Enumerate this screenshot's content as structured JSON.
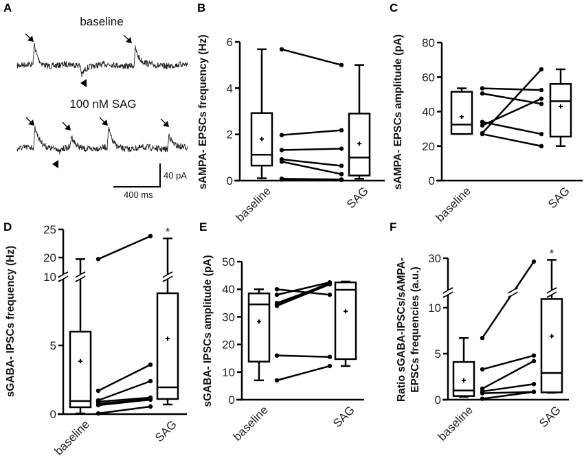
{
  "panel_a": {
    "letter": "A",
    "baseline_title": "baseline",
    "sag_title": "100 nM SAG",
    "scale_y": "40 pA",
    "scale_x": "400 ms"
  },
  "chart_data": [
    {
      "id": "B",
      "letter": "B",
      "type": "box-paired",
      "ylabel": "sAMPA- EPSCs frequency (Hz)",
      "categories": [
        "baseline",
        "SAG"
      ],
      "yticks": [
        0,
        2,
        4,
        6
      ],
      "ytick_labels": [
        "0",
        "2",
        "4",
        "6"
      ],
      "ylim": [
        0,
        6
      ],
      "boxes": [
        {
          "min": 0.1,
          "q1": 0.65,
          "median": 1.12,
          "q3": 2.92,
          "max": 5.68,
          "mean": 1.8
        },
        {
          "min": 0.08,
          "q1": 0.22,
          "median": 1.0,
          "q3": 2.9,
          "max": 5.0,
          "mean": 1.6
        }
      ],
      "pairs": [
        [
          5.68,
          5.0
        ],
        [
          1.97,
          2.18
        ],
        [
          1.32,
          1.38
        ],
        [
          0.92,
          0.64
        ],
        [
          0.82,
          0.28
        ],
        [
          0.08,
          0.05
        ],
        [
          0.05,
          0.03
        ]
      ],
      "significance": [
        "",
        ""
      ]
    },
    {
      "id": "C",
      "letter": "C",
      "type": "box-paired",
      "ylabel": "sAMPA- EPSCs amplitude (pA)",
      "categories": [
        "baseline",
        "SAG"
      ],
      "yticks": [
        0,
        20,
        40,
        60,
        80
      ],
      "ytick_labels": [
        "0",
        "20",
        "40",
        "60",
        "80"
      ],
      "ylim": [
        0,
        80
      ],
      "boxes": [
        {
          "min": 27,
          "q1": 27,
          "median": 32.5,
          "q3": 51.5,
          "max": 53.5,
          "mean": 37
        },
        {
          "min": 20,
          "q1": 25.5,
          "median": 46,
          "q3": 56,
          "max": 64.5,
          "mean": 43
        }
      ],
      "pairs": [
        [
          53.5,
          52.5
        ],
        [
          50.5,
          44.5
        ],
        [
          34,
          27
        ],
        [
          32,
          47.5
        ],
        [
          27.5,
          64.5
        ],
        [
          27,
          20
        ]
      ],
      "significance": [
        "",
        ""
      ]
    },
    {
      "id": "D",
      "letter": "D",
      "type": "box-paired",
      "ylabel": "sGABA- IPSCs frequency (Hz)",
      "categories": [
        "baseline",
        "SAG"
      ],
      "yticks": [
        0,
        5,
        10,
        20,
        25
      ],
      "ytick_labels": [
        "0",
        "5",
        "10",
        "20",
        "25"
      ],
      "ylim": [
        0,
        25
      ],
      "axis_break": [
        10,
        12
      ],
      "boxes": [
        {
          "min": 0.05,
          "q1": 0.5,
          "median": 0.95,
          "q3": 6.0,
          "max": 19,
          "mean": 3.85
        },
        {
          "min": 0.7,
          "q1": 1.1,
          "median": 1.95,
          "q3": 8.8,
          "max": 23.4,
          "mean": 5.5
        }
      ],
      "pairs": [
        [
          19,
          23.8
        ],
        [
          1.7,
          3.6
        ],
        [
          1.0,
          2.4
        ],
        [
          0.9,
          1.2
        ],
        [
          0.75,
          1.1
        ],
        [
          0.65,
          1.05
        ],
        [
          0.05,
          0.55
        ]
      ],
      "significance": [
        "",
        "*"
      ]
    },
    {
      "id": "E",
      "letter": "E",
      "type": "box-paired",
      "ylabel": "sGABA- IPSCs amplitude (pA)",
      "categories": [
        "baseline",
        "SAG"
      ],
      "yticks": [
        0,
        10,
        20,
        30,
        40,
        50
      ],
      "ytick_labels": [
        "0",
        "10",
        "20",
        "30",
        "40",
        "50"
      ],
      "ylim": [
        0,
        50
      ],
      "boxes": [
        {
          "min": 7,
          "q1": 13.8,
          "median": 34.5,
          "q3": 38.5,
          "max": 40,
          "mean": 28.3
        },
        {
          "min": 12.2,
          "q1": 14.7,
          "median": 39.8,
          "q3": 42.5,
          "max": 42.8,
          "mean": 32
        }
      ],
      "pairs": [
        [
          40,
          38
        ],
        [
          38,
          42.5
        ],
        [
          35,
          42
        ],
        [
          34.5,
          42.3
        ],
        [
          34,
          41.8
        ],
        [
          16,
          15.5
        ],
        [
          7,
          12.2
        ]
      ],
      "significance": [
        "",
        ""
      ]
    },
    {
      "id": "F",
      "letter": "F",
      "type": "box-paired",
      "ylabel": [
        "Ratio sGABA-IPSCs/sAMPA-",
        "EPSCs frequencies (a.u.)"
      ],
      "categories": [
        "baseline",
        "SAG"
      ],
      "yticks": [
        0,
        5,
        10,
        30
      ],
      "ytick_labels": [
        "0",
        "5",
        "10",
        "30"
      ],
      "ylim": [
        0,
        30
      ],
      "axis_break": [
        11,
        12
      ],
      "boxes": [
        {
          "min": 0.3,
          "q1": 0.4,
          "median": 1.0,
          "q3": 4.1,
          "max": 6.7,
          "mean": 2.1
        },
        {
          "min": 0.75,
          "q1": 0.8,
          "median": 2.9,
          "q3": 10.9,
          "max": 29,
          "mean": 6.9
        }
      ],
      "pairs": [
        [
          6.7,
          28
        ],
        [
          3.3,
          4.8
        ],
        [
          1.2,
          4.2
        ],
        [
          0.9,
          1.7
        ],
        [
          0.7,
          0.85
        ],
        [
          0.1,
          0.85
        ]
      ],
      "significance": [
        "",
        "*"
      ]
    }
  ]
}
